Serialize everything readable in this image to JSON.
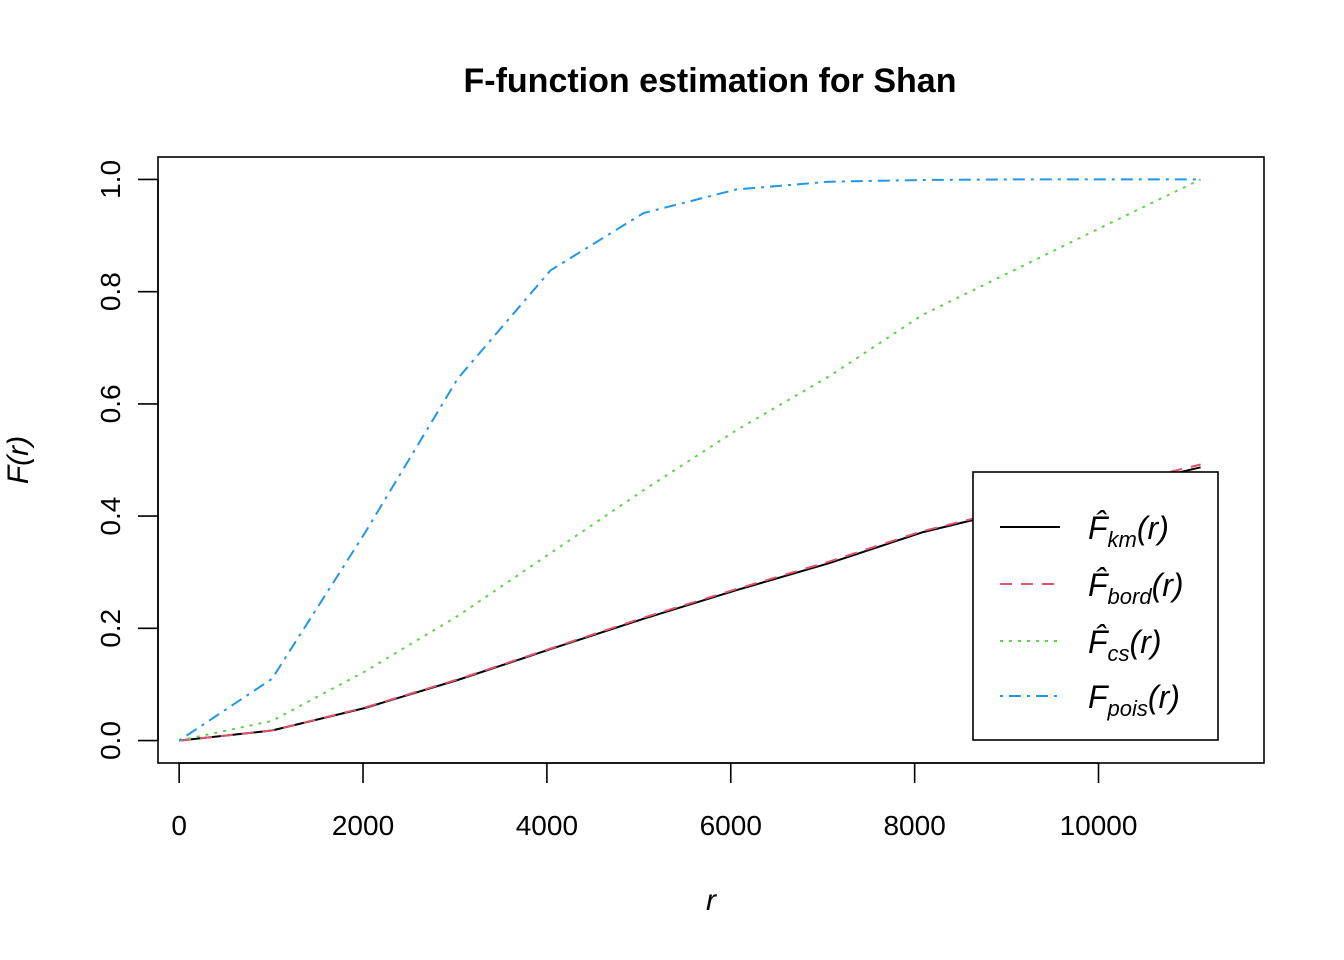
{
  "chart_data": {
    "type": "line",
    "title": "F-function estimation for Shan",
    "xlabel": "r",
    "ylabel": "F(r)",
    "xlim": [
      -230,
      11800
    ],
    "ylim": [
      -0.04,
      1.04
    ],
    "xticks": [
      0,
      2000,
      4000,
      6000,
      8000,
      10000
    ],
    "xtick_labels": [
      "0",
      "2000",
      "4000",
      "6000",
      "8000",
      "10000"
    ],
    "yticks": [
      0,
      0.2,
      0.4,
      0.6,
      0.8,
      1.0
    ],
    "ytick_labels": [
      "0.0",
      "0.2",
      "0.4",
      "0.6",
      "0.8",
      "1.0"
    ],
    "grid": false,
    "legend_position": "bottom-right",
    "series": [
      {
        "name": "F̂km(r)",
        "base": "F̂",
        "sub": "km",
        "color": "#000000",
        "dash": "solid",
        "x": [
          0,
          1010,
          2020,
          3030,
          4040,
          5050,
          6060,
          7070,
          8080,
          9090,
          10100,
          11110
        ],
        "y": [
          0.0,
          0.018,
          0.058,
          0.108,
          0.163,
          0.217,
          0.268,
          0.316,
          0.371,
          0.411,
          0.448,
          0.487
        ]
      },
      {
        "name": "F̂bord(r)",
        "base": "F̂",
        "sub": "bord",
        "color": "#DF536B",
        "dash": "dashed",
        "x": [
          0,
          1010,
          2020,
          3030,
          4040,
          5050,
          6060,
          7070,
          8080,
          9090,
          10100,
          11110
        ],
        "y": [
          0.0,
          0.018,
          0.059,
          0.109,
          0.164,
          0.219,
          0.27,
          0.319,
          0.373,
          0.414,
          0.452,
          0.492
        ]
      },
      {
        "name": "F̂cs(r)",
        "base": "F̂",
        "sub": "cs",
        "color": "#61D04F",
        "dash": "dotted",
        "x": [
          0,
          1010,
          2020,
          3030,
          4040,
          5050,
          6060,
          7070,
          8080,
          9090,
          10100,
          11110
        ],
        "y": [
          0.0,
          0.035,
          0.123,
          0.222,
          0.334,
          0.446,
          0.553,
          0.649,
          0.758,
          0.839,
          0.92,
          1.0
        ]
      },
      {
        "name": "Fpois(r)",
        "base": "F",
        "sub": "pois",
        "color": "#2297E6",
        "dash": "dotdash",
        "x": [
          0,
          1010,
          2020,
          3030,
          4040,
          5050,
          6060,
          7070,
          8080,
          9090,
          10100,
          11110
        ],
        "y": [
          0.0,
          0.11,
          0.37,
          0.645,
          0.838,
          0.94,
          0.982,
          0.996,
          0.999,
          1.0,
          1.0,
          1.0
        ]
      }
    ]
  }
}
